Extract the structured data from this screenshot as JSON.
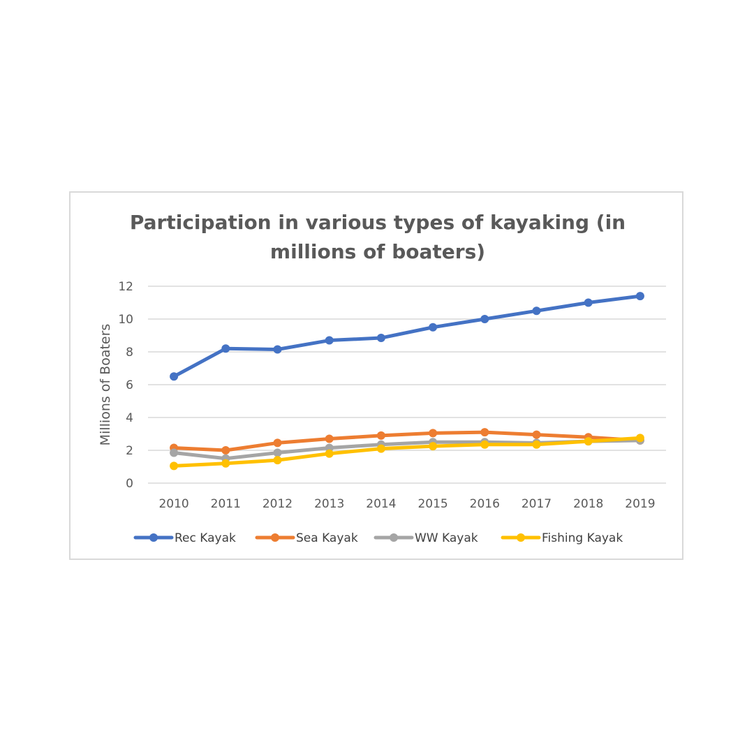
{
  "chart_data": {
    "type": "line",
    "title_lines": [
      "Participation in various types of kayaking (in",
      "millions of boaters)"
    ],
    "ylabel": "Millions of Boaters",
    "xlabel": "",
    "ylim": [
      0,
      12
    ],
    "yticks": [
      0,
      2,
      4,
      6,
      8,
      10,
      12
    ],
    "grid": true,
    "legend_position": "bottom",
    "categories": [
      "2010",
      "2011",
      "2012",
      "2013",
      "2014",
      "2015",
      "2016",
      "2017",
      "2018",
      "2019"
    ],
    "series": [
      {
        "name": "Rec Kayak",
        "color": "#4472c4",
        "values": [
          6.5,
          8.2,
          8.15,
          8.7,
          8.85,
          9.5,
          10.0,
          10.5,
          11.0,
          11.4
        ]
      },
      {
        "name": "Sea Kayak",
        "color": "#ed7d31",
        "values": [
          2.15,
          2.0,
          2.45,
          2.7,
          2.9,
          3.05,
          3.1,
          2.95,
          2.8,
          2.6
        ]
      },
      {
        "name": "WW Kayak",
        "color": "#a5a5a5",
        "values": [
          1.85,
          1.5,
          1.85,
          2.15,
          2.35,
          2.5,
          2.5,
          2.45,
          2.55,
          2.6
        ]
      },
      {
        "name": "Fishing Kayak",
        "color": "#ffc000",
        "values": [
          1.05,
          1.2,
          1.4,
          1.8,
          2.1,
          2.25,
          2.35,
          2.35,
          2.55,
          2.75
        ]
      }
    ]
  }
}
